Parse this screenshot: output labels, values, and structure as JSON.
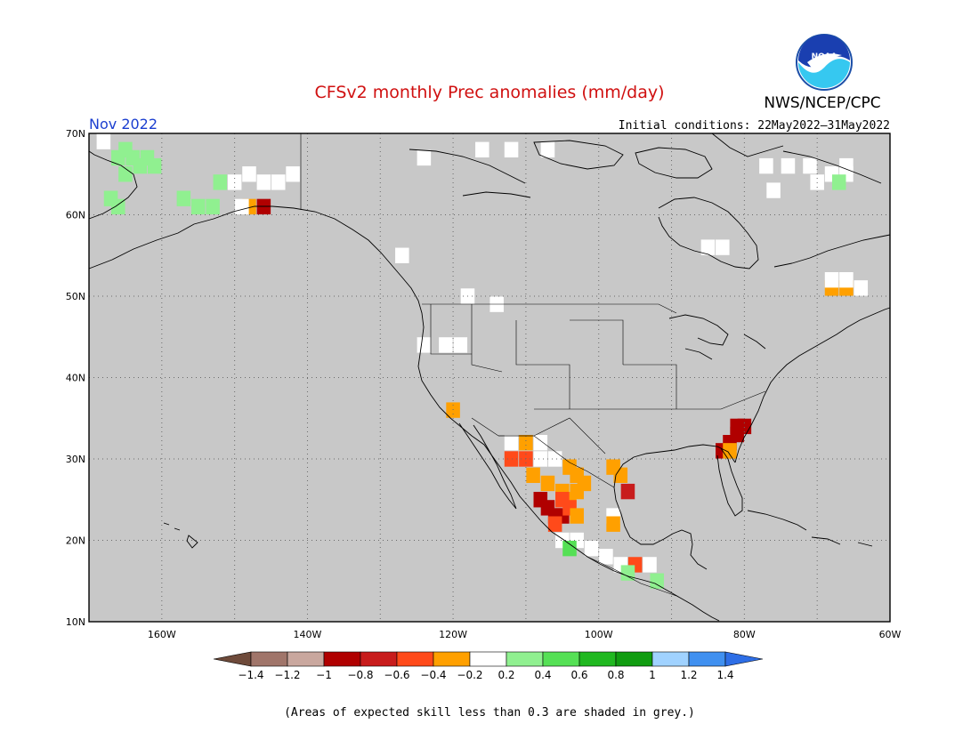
{
  "header": {
    "title": "CFSv2 monthly Prec anomalies (mm/day)",
    "agency": "NWS/NCEP/CPC",
    "logo_text": "NOAA",
    "valid_month": "Nov 2022",
    "initial_conditions": "Initial conditions: 22May2022–31May2022"
  },
  "map": {
    "lon_range": [
      -170,
      -60
    ],
    "lat_range": [
      10,
      70
    ],
    "lat_labels": [
      "70N",
      "60N",
      "50N",
      "40N",
      "30N",
      "20N",
      "10N"
    ],
    "lon_labels": [
      "160W",
      "140W",
      "120W",
      "100W",
      "80W",
      "60W"
    ],
    "background_color": "#c8c8c8",
    "coast_color": "#000000"
  },
  "colorbar": {
    "labels": [
      "−1.4",
      "−1.2",
      "−1",
      "−0.8",
      "−0.6",
      "−0.4",
      "−0.2",
      "0.2",
      "0.4",
      "0.6",
      "0.8",
      "1",
      "1.2",
      "1.4"
    ],
    "colors": [
      "#a0756a",
      "#c9a79e",
      "#b00000",
      "#c81c1c",
      "#ff4a1a",
      "#ffa000",
      "#ffffff",
      "#90f090",
      "#55e055",
      "#20b820",
      "#109c10",
      "#a0d2ff",
      "#4090f0"
    ],
    "low_extreme_color": "#6e4a3a",
    "high_extreme_color": "#2e6ee6"
  },
  "footer": {
    "note": "(Areas of expected skill less than 0.3 are shaded in grey.)"
  }
}
